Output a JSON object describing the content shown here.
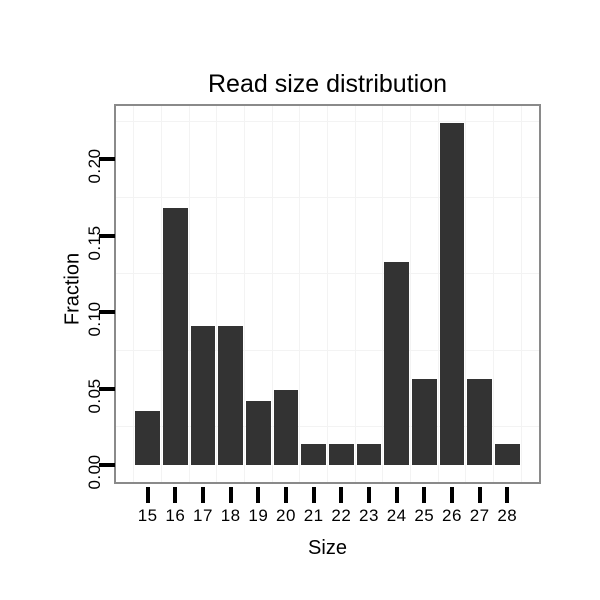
{
  "chart_data": {
    "type": "bar",
    "title": "Read size distribution",
    "xlabel": "Size",
    "ylabel": "Fraction",
    "categories": [
      15,
      16,
      17,
      18,
      19,
      20,
      21,
      22,
      23,
      24,
      25,
      26,
      27,
      28
    ],
    "values": [
      0.035,
      0.168,
      0.091,
      0.091,
      0.042,
      0.049,
      0.014,
      0.014,
      0.014,
      0.133,
      0.056,
      0.224,
      0.056,
      0.014
    ],
    "ytick_values": [
      0.0,
      0.05,
      0.1,
      0.15,
      0.2
    ],
    "ytick_labels": [
      "0.00",
      "0.05",
      "0.10",
      "0.15",
      "0.20"
    ],
    "ylim": [
      -0.0112,
      0.235
    ],
    "xlim": [
      13.855,
      29.145
    ],
    "bar_width": 0.9,
    "legend": "none",
    "grid": {
      "x_minor": [
        14.5,
        15.5,
        16.5,
        17.5,
        18.5,
        19.5,
        20.5,
        21.5,
        22.5,
        23.5,
        24.5,
        25.5,
        26.5,
        27.5,
        28.5
      ],
      "y_minor": [
        0.025,
        0.075,
        0.125,
        0.175,
        0.225
      ]
    },
    "colors": {
      "bar": "#333333",
      "panel_background": "#ffffff",
      "panel_border": "#8a8a8a",
      "grid": "#f3f3f3",
      "tick": "#000000",
      "text": "#000000",
      "background": "#ffffff"
    }
  }
}
